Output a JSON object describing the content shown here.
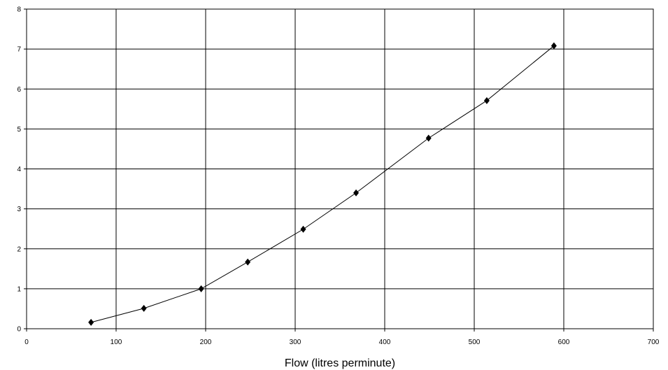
{
  "chart_data": {
    "type": "line",
    "title": "",
    "xlabel": "Flow (litres perminute)",
    "ylabel": "",
    "xlim": [
      0,
      700
    ],
    "ylim": [
      0,
      8
    ],
    "x_ticks": [
      0,
      100,
      200,
      300,
      400,
      500,
      600,
      700
    ],
    "y_ticks": [
      0,
      1,
      2,
      3,
      4,
      5,
      6,
      7,
      8
    ],
    "x_tick_labels": [
      "0",
      "100",
      "200",
      "300",
      "400",
      "500",
      "600",
      "700"
    ],
    "y_tick_labels": [
      "0",
      "1",
      "2",
      "3",
      "4",
      "5",
      "6",
      "7",
      "8"
    ],
    "grid": true,
    "marker": "diamond",
    "series": [
      {
        "x": [
          72,
          131,
          195,
          247,
          309,
          368,
          449,
          514,
          589
        ],
        "y": [
          0.16,
          0.51,
          1.0,
          1.67,
          2.49,
          3.4,
          4.77,
          5.71,
          7.08
        ]
      }
    ],
    "colors": {
      "line": "#000000",
      "marker": "#000000",
      "grid": "#000000"
    }
  }
}
